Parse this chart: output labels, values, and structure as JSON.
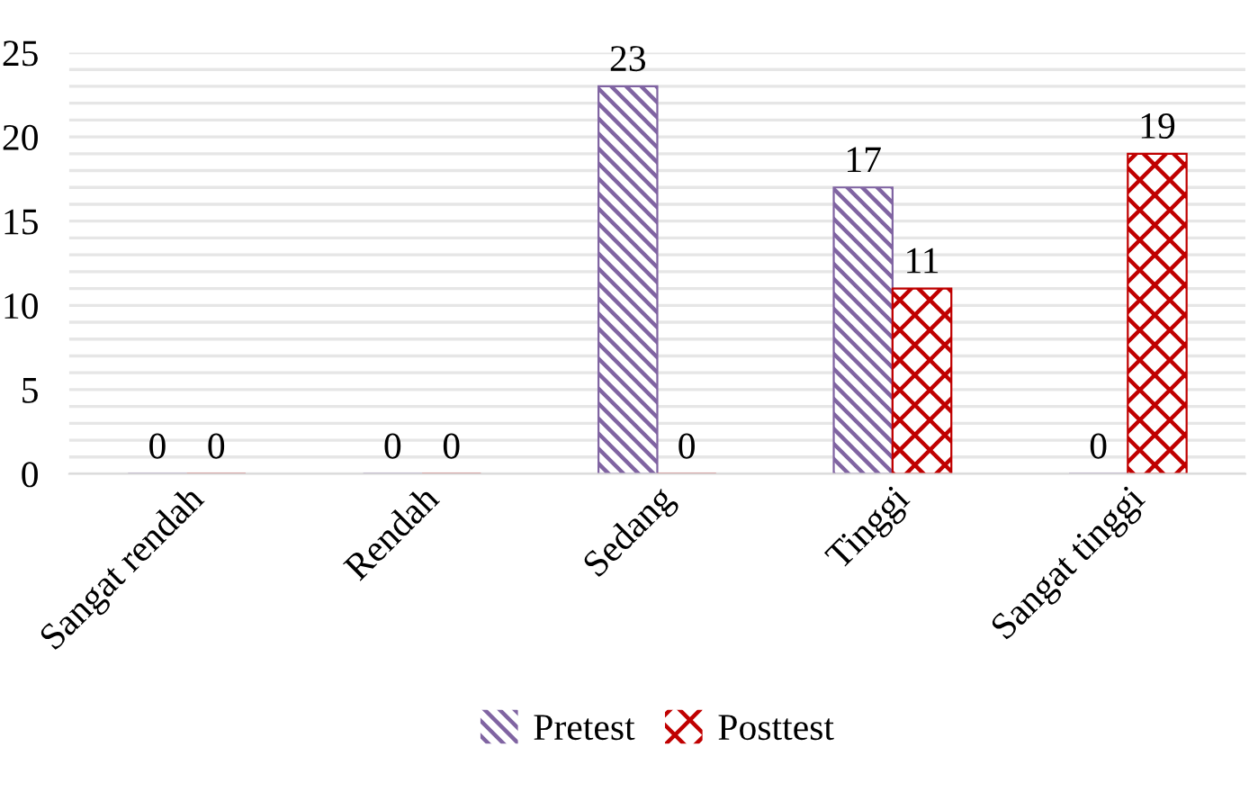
{
  "chart_data": {
    "type": "bar",
    "categories": [
      "Sangat rendah",
      "Rendah",
      "Sedang",
      "Tinggi",
      "Sangat tinggi"
    ],
    "series": [
      {
        "name": "Pretest",
        "color": "#8064a2",
        "values": [
          0,
          0,
          23,
          17,
          0
        ]
      },
      {
        "name": "Posttest",
        "color": "#c00000",
        "values": [
          0,
          0,
          0,
          11,
          19
        ]
      }
    ],
    "ylim": [
      0,
      25
    ],
    "yticks": [
      0,
      {
        "value": 1,
        "label": null
      },
      {
        "value": 2,
        "label": null
      },
      {
        "value": 3,
        "label": null
      },
      {
        "value": 4,
        "label": null
      },
      5,
      {
        "value": 6,
        "label": null
      },
      {
        "value": 7,
        "label": null
      },
      {
        "value": 8,
        "label": null
      },
      {
        "value": 9,
        "label": null
      },
      10,
      {
        "value": 11,
        "label": null
      },
      {
        "value": 12,
        "label": null
      },
      {
        "value": 13,
        "label": null
      },
      {
        "value": 14,
        "label": null
      },
      15,
      {
        "value": 16,
        "label": null
      },
      {
        "value": 17,
        "label": null
      },
      {
        "value": 18,
        "label": null
      },
      {
        "value": 19,
        "label": null
      },
      20,
      {
        "value": 21,
        "label": null
      },
      {
        "value": 22,
        "label": null
      },
      {
        "value": 23,
        "label": null
      },
      {
        "value": 24,
        "label": null
      },
      25
    ],
    "grid": "y",
    "legend": "bottom",
    "data_labels": true
  }
}
